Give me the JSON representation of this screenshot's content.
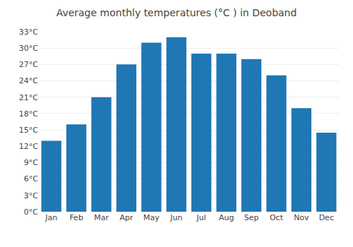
{
  "chart_data": {
    "type": "bar",
    "title": "Average monthly temperatures (°C ) in Deoband",
    "categories": [
      "Jan",
      "Feb",
      "Mar",
      "Apr",
      "May",
      "Jun",
      "Jul",
      "Aug",
      "Sep",
      "Oct",
      "Nov",
      "Dec"
    ],
    "values": [
      13,
      16,
      21,
      27,
      31,
      32,
      29,
      29,
      28,
      25,
      19,
      14.5
    ],
    "ylim": [
      0,
      33
    ],
    "yticks": [
      {
        "value": 0,
        "label": "0°C"
      },
      {
        "value": 3,
        "label": "3°C"
      },
      {
        "value": 6,
        "label": "6°C"
      },
      {
        "value": 9,
        "label": "9°C"
      },
      {
        "value": 12,
        "label": "12°C"
      },
      {
        "value": 15,
        "label": "15°C"
      },
      {
        "value": 18,
        "label": "18°C"
      },
      {
        "value": 21,
        "label": "21°C"
      },
      {
        "value": 24,
        "label": "24°C"
      },
      {
        "value": 27,
        "label": "27°C"
      },
      {
        "value": 30,
        "label": "30°C"
      },
      {
        "value": 33,
        "label": "33°C"
      }
    ],
    "grid": true
  }
}
